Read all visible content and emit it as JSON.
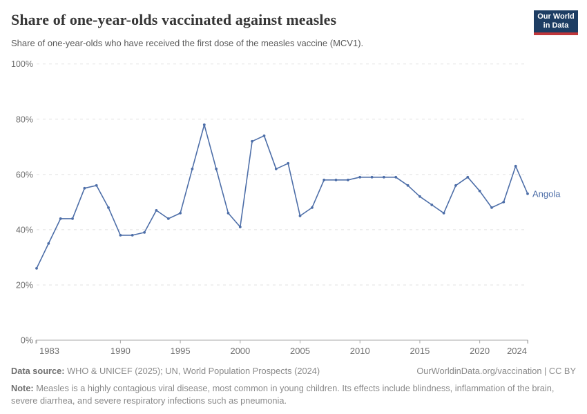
{
  "header": {
    "title": "Share of one-year-olds vaccinated against measles",
    "subtitle": "Share of one-year-olds who have received the first dose of the measles vaccine (MCV1).",
    "logo": {
      "line1": "Our World",
      "line2": "in Data",
      "bg_color": "#1d3d63",
      "bar_color": "#c0373b"
    }
  },
  "chart_data": {
    "type": "line",
    "title": "Share of one-year-olds vaccinated against measles",
    "xlabel": "",
    "ylabel": "",
    "xlim": [
      1983,
      2024
    ],
    "ylim": [
      0,
      100
    ],
    "grid": "horizontal-dashed",
    "legend_position": "end-of-line-label",
    "x_tick_values": [
      1983,
      1990,
      1995,
      2000,
      2005,
      2010,
      2015,
      2020,
      2024
    ],
    "x_tick_labels": [
      "1983",
      "1990",
      "1995",
      "2000",
      "2005",
      "2010",
      "2015",
      "2020",
      "2024"
    ],
    "y_tick_values": [
      0,
      20,
      40,
      60,
      80,
      100
    ],
    "y_tick_labels": [
      "0%",
      "20%",
      "40%",
      "60%",
      "80%",
      "100%"
    ],
    "x": [
      1983,
      1984,
      1985,
      1986,
      1987,
      1988,
      1989,
      1990,
      1991,
      1992,
      1993,
      1994,
      1995,
      1996,
      1997,
      1998,
      1999,
      2000,
      2001,
      2002,
      2003,
      2004,
      2005,
      2006,
      2007,
      2008,
      2009,
      2010,
      2011,
      2012,
      2013,
      2014,
      2015,
      2016,
      2017,
      2018,
      2019,
      2020,
      2021,
      2022,
      2023,
      2024
    ],
    "series": [
      {
        "name": "Angola",
        "color": "#4d6ea8",
        "values": [
          26,
          35,
          44,
          44,
          55,
          56,
          48,
          38,
          38,
          39,
          47,
          44,
          46,
          62,
          78,
          62,
          46,
          41,
          72,
          74,
          62,
          64,
          45,
          48,
          58,
          58,
          58,
          59,
          59,
          59,
          59,
          56,
          52,
          49,
          46,
          56,
          59,
          54,
          48,
          50,
          63,
          53
        ]
      }
    ],
    "colors": {
      "gridline": "#e1e1e1",
      "axis": "#a9a9a9",
      "tick_label": "#6e6e6e"
    }
  },
  "footer": {
    "datasource_label": "Data source:",
    "datasource_text": " WHO & UNICEF (2025); UN, World Population Prospects (2024)",
    "link_text": "OurWorldinData.org/vaccination | CC BY",
    "note_label": "Note:",
    "note_text": " Measles is a highly contagious viral disease, most common in young children. Its effects include blindness, inflammation of the brain, severe diarrhea, and severe respiratory infections such as pneumonia."
  }
}
